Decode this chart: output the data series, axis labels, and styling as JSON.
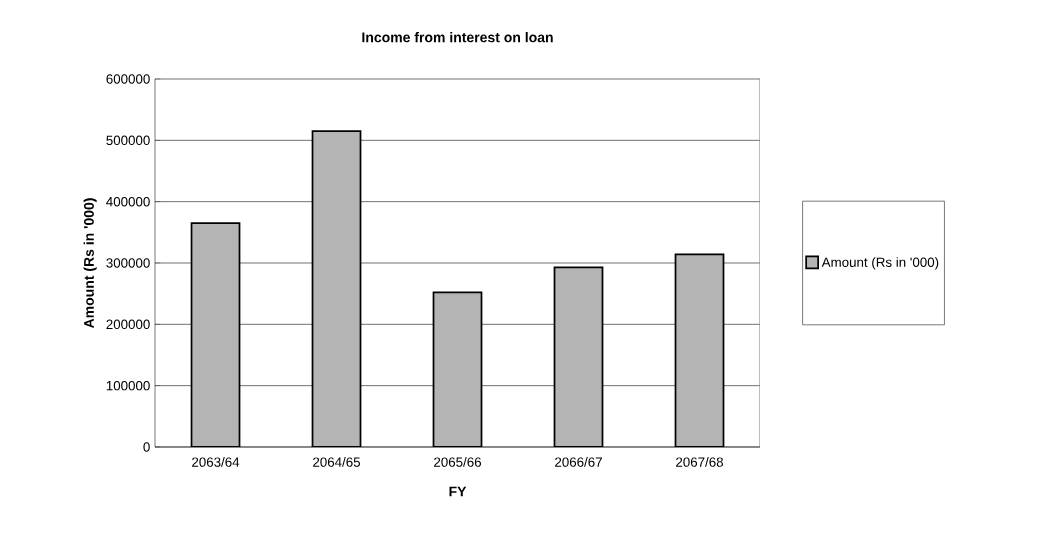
{
  "chart_data": {
    "type": "bar",
    "title": "Income from interest on loan",
    "xlabel": "FY",
    "ylabel": "Amount (Rs in '000)",
    "categories": [
      "2063/64",
      "2064/65",
      "2065/66",
      "2066/67",
      "2067/68"
    ],
    "series": [
      {
        "name": "Amount (Rs in '000)",
        "color": "#b4b4b4",
        "values": [
          365000,
          515000,
          252000,
          293000,
          314000
        ]
      }
    ],
    "ylim": [
      0,
      600000
    ],
    "yticks": [
      0,
      100000,
      200000,
      300000,
      400000,
      500000,
      600000
    ],
    "grid": "y",
    "legend": "right"
  }
}
